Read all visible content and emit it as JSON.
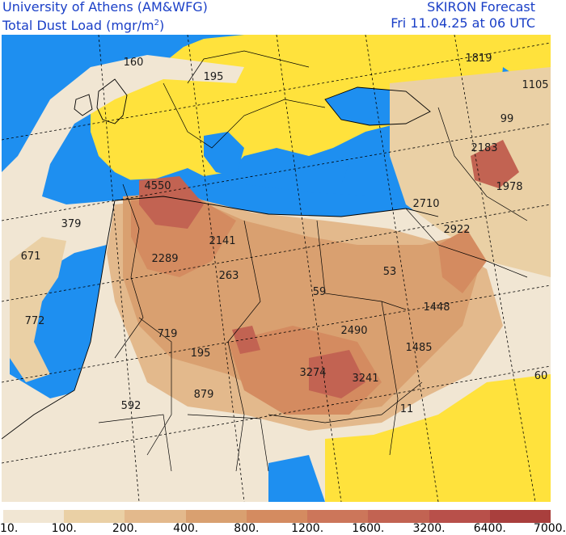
{
  "header": {
    "title_line1": "University of Athens (AM&WFG)",
    "title_line2_prefix": "Total Dust Load (mgr/m",
    "title_line2_sup": "2",
    "title_line2_suffix": ")",
    "forecast_line1": "SKIRON Forecast",
    "forecast_line2": "Fri 11.04.25 at 06 UTC"
  },
  "legend": {
    "ticks": [
      "10.",
      "100.",
      "200.",
      "400.",
      "800.",
      "1200.",
      "1600.",
      "3200.",
      "6400.",
      "7000."
    ],
    "colors": [
      "#f1e6d3",
      "#ead0a5",
      "#e3b98c",
      "#d9a070",
      "#d48b60",
      "#cc765a",
      "#c26352",
      "#b8504a",
      "#a93f3d"
    ]
  },
  "map_colors": {
    "ocean": "#1e8ff0",
    "low_dust_land": "#ffe23c",
    "outline": "#000000"
  },
  "labels": [
    {
      "id": "160",
      "text": "160"
    },
    {
      "id": "195a",
      "text": "195"
    },
    {
      "id": "1819",
      "text": "1819"
    },
    {
      "id": "1105",
      "text": "1105"
    },
    {
      "id": "99",
      "text": "99"
    },
    {
      "id": "2183",
      "text": "2183"
    },
    {
      "id": "1978",
      "text": "1978"
    },
    {
      "id": "4550",
      "text": "4550"
    },
    {
      "id": "2710",
      "text": "2710"
    },
    {
      "id": "2922",
      "text": "2922"
    },
    {
      "id": "379",
      "text": "379"
    },
    {
      "id": "2141",
      "text": "2141"
    },
    {
      "id": "671",
      "text": "671"
    },
    {
      "id": "2289",
      "text": "2289"
    },
    {
      "id": "263",
      "text": "263"
    },
    {
      "id": "53",
      "text": "53"
    },
    {
      "id": "59",
      "text": "59"
    },
    {
      "id": "1448",
      "text": "1448"
    },
    {
      "id": "772",
      "text": "772"
    },
    {
      "id": "719",
      "text": "719"
    },
    {
      "id": "2490",
      "text": "2490"
    },
    {
      "id": "195b",
      "text": "195"
    },
    {
      "id": "1485",
      "text": "1485"
    },
    {
      "id": "3274",
      "text": "3274"
    },
    {
      "id": "3241",
      "text": "3241"
    },
    {
      "id": "60",
      "text": "60"
    },
    {
      "id": "879",
      "text": "879"
    },
    {
      "id": "592",
      "text": "592"
    },
    {
      "id": "11",
      "text": "11"
    }
  ]
}
